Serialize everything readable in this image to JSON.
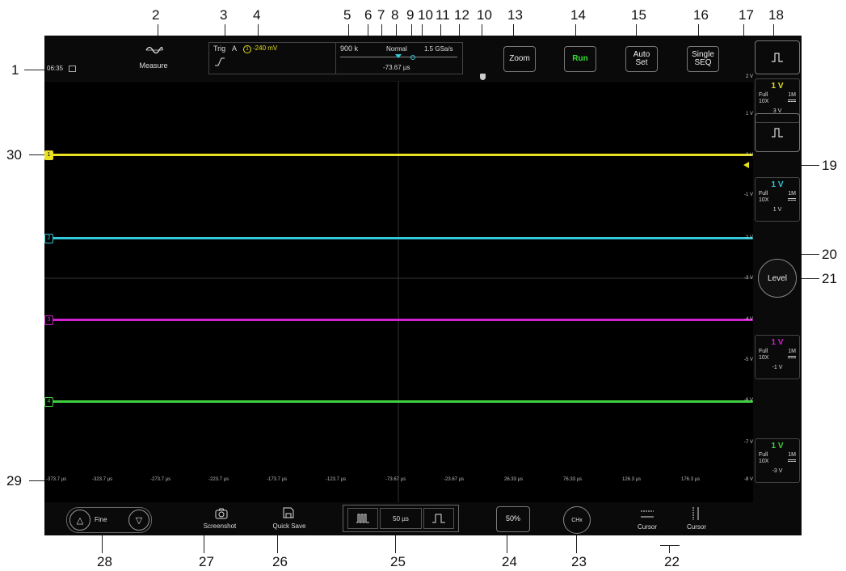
{
  "callouts": [
    "1",
    "2",
    "3",
    "4",
    "5",
    "6",
    "7",
    "8",
    "9",
    "10",
    "11",
    "12",
    "10",
    "13",
    "14",
    "15",
    "16",
    "17",
    "18",
    "19",
    "20",
    "21",
    "22",
    "23",
    "24",
    "25",
    "26",
    "27",
    "28",
    "29",
    "30"
  ],
  "top_bar": {
    "time": "06:35",
    "measure_label": "Measure",
    "trig_label": "Trig",
    "trig_source": "A",
    "trig_channel": "1",
    "trig_level": "-240 mV",
    "mem_depth": "900 k",
    "acq_mode": "Normal",
    "sample_rate": "1.5 GSa/s",
    "h_offset": "-73.67 µs",
    "zoom_label": "Zoom",
    "run_label": "Run",
    "autoset_label": "Auto\nSet",
    "single_label": "Single\nSEQ"
  },
  "channels": [
    {
      "id": "1",
      "color": "#e8e020",
      "scale": "1 V",
      "bw": "Full",
      "imp": "1M",
      "probe": "10X",
      "offset": "3 V"
    },
    {
      "id": "2",
      "color": "#30c8d8",
      "scale": "1 V",
      "bw": "Full",
      "imp": "1M",
      "probe": "10X",
      "offset": "1 V"
    },
    {
      "id": "3",
      "color": "#d020d0",
      "scale": "1 V",
      "bw": "Full",
      "imp": "1M",
      "probe": "10X",
      "offset": "-1 V"
    },
    {
      "id": "4",
      "color": "#40d040",
      "scale": "1 V",
      "bw": "Full",
      "imp": "1M",
      "probe": "10X",
      "offset": "-3 V"
    }
  ],
  "v_ticks": [
    "2 V",
    "1 V",
    "0 V",
    "-1 V",
    "-2 V",
    "-3 V",
    "-4 V",
    "-5 V",
    "-6 V",
    "-7 V",
    "-8 V"
  ],
  "time_ticks": [
    "-373.7 µs",
    "-323.7 µs",
    "-273.7 µs",
    "-223.7 µs",
    "-173.7 µs",
    "-123.7 µs",
    "-73.67 µs",
    "-23.67 µs",
    "26.33 µs",
    "76.33 µs",
    "126.3 µs",
    "176.3 µs"
  ],
  "level_label": "Level",
  "bottom_bar": {
    "fine_label": "Fine",
    "screenshot_label": "Screenshot",
    "quicksave_label": "Quick Save",
    "timebase": "50 µs",
    "fifty_label": "50%",
    "chx_label": "CHx",
    "cursor_h_label": "Cursor",
    "cursor_v_label": "Cursor"
  },
  "colors": {
    "ch1": "#e8e020",
    "ch2": "#30c8d8",
    "ch3": "#d020d0",
    "ch4": "#40d040",
    "run": "#30e030",
    "trigger": "#e8e020"
  }
}
